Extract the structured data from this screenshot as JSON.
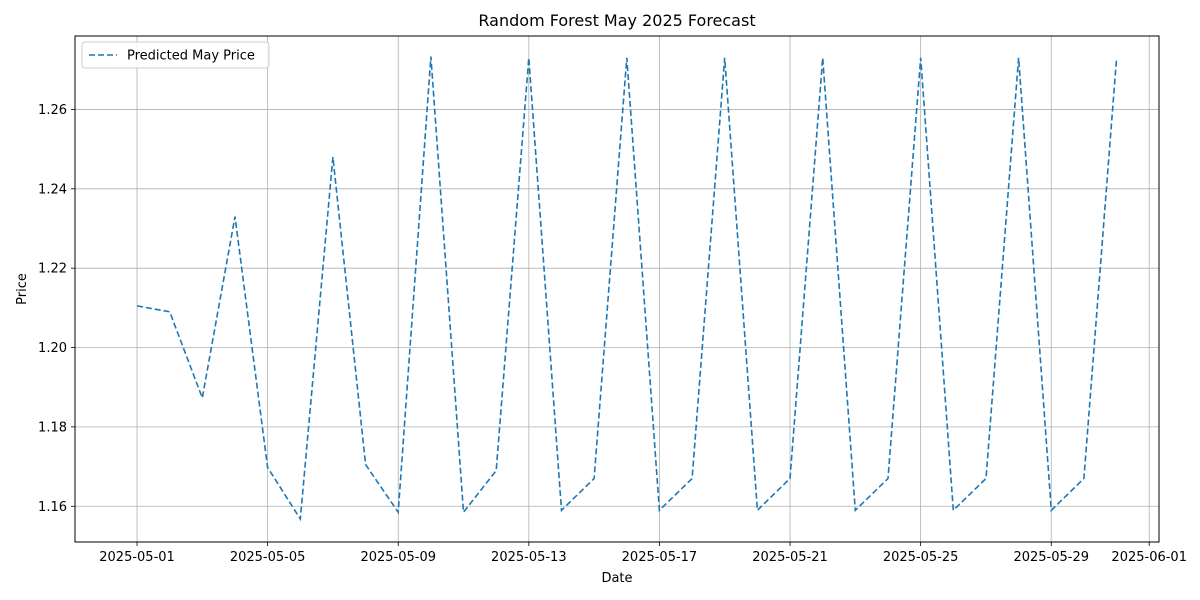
{
  "chart_data": {
    "type": "line",
    "title": "Random Forest May 2025 Forecast",
    "xlabel": "Date",
    "ylabel": "Price",
    "grid": true,
    "legend_position": "upper-left",
    "xlim": [
      -1.9,
      31.3
    ],
    "ylim": [
      1.151,
      1.2785
    ],
    "x_ticks": [
      {
        "label": "2025-05-01",
        "day": 0
      },
      {
        "label": "2025-05-05",
        "day": 4
      },
      {
        "label": "2025-05-09",
        "day": 8
      },
      {
        "label": "2025-05-13",
        "day": 12
      },
      {
        "label": "2025-05-17",
        "day": 16
      },
      {
        "label": "2025-05-21",
        "day": 20
      },
      {
        "label": "2025-05-25",
        "day": 24
      },
      {
        "label": "2025-05-29",
        "day": 28
      },
      {
        "label": "2025-06-01",
        "day": 31
      }
    ],
    "y_ticks": [
      {
        "label": "1.16",
        "value": 1.16
      },
      {
        "label": "1.18",
        "value": 1.18
      },
      {
        "label": "1.20",
        "value": 1.2
      },
      {
        "label": "1.22",
        "value": 1.22
      },
      {
        "label": "1.24",
        "value": 1.24
      },
      {
        "label": "1.26",
        "value": 1.26
      }
    ],
    "series": [
      {
        "name": "Predicted May Price",
        "color": "#1f77b4",
        "style": "dashed",
        "x_days": [
          0,
          1,
          2,
          3,
          4,
          5,
          6,
          7,
          8,
          9,
          10,
          11,
          12,
          13,
          14,
          15,
          16,
          17,
          18,
          19,
          20,
          21,
          22,
          23,
          24,
          25,
          26,
          27,
          28,
          29,
          30
        ],
        "values": [
          1.2105,
          1.209,
          1.1873,
          1.233,
          1.1698,
          1.1568,
          1.248,
          1.1705,
          1.1585,
          1.2733,
          1.1585,
          1.169,
          1.273,
          1.159,
          1.167,
          1.273,
          1.159,
          1.167,
          1.273,
          1.159,
          1.167,
          1.273,
          1.159,
          1.167,
          1.273,
          1.159,
          1.167,
          1.273,
          1.159,
          1.167,
          1.273
        ]
      }
    ]
  }
}
